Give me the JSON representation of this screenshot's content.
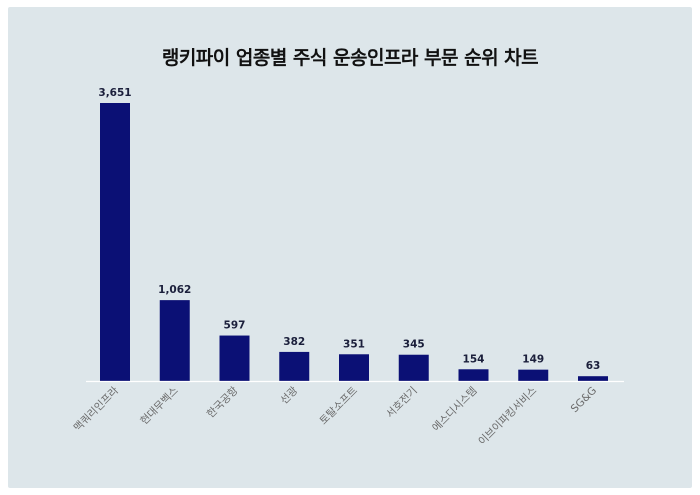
{
  "chart_data": {
    "type": "bar",
    "title": "랭키파이 업종별 주식 운송인프라 부문 순위 차트",
    "xlabel": "",
    "ylabel": "",
    "categories": [
      "맥쿼리인프라",
      "현대무벡스",
      "한국공항",
      "선광",
      "토탈소프트",
      "서호전기",
      "에스디시스템",
      "이브이파킹서비스",
      "SG&G"
    ],
    "values": [
      3651,
      1062,
      597,
      382,
      351,
      345,
      154,
      149,
      63
    ],
    "value_labels": [
      "3,651",
      "1,062",
      "597",
      "382",
      "351",
      "345",
      "154",
      "149",
      "63"
    ],
    "ylim": [
      0,
      3651
    ],
    "grid": false,
    "legend": "none",
    "bar_color": "#0b1075",
    "axis_color": "#ffffff"
  }
}
